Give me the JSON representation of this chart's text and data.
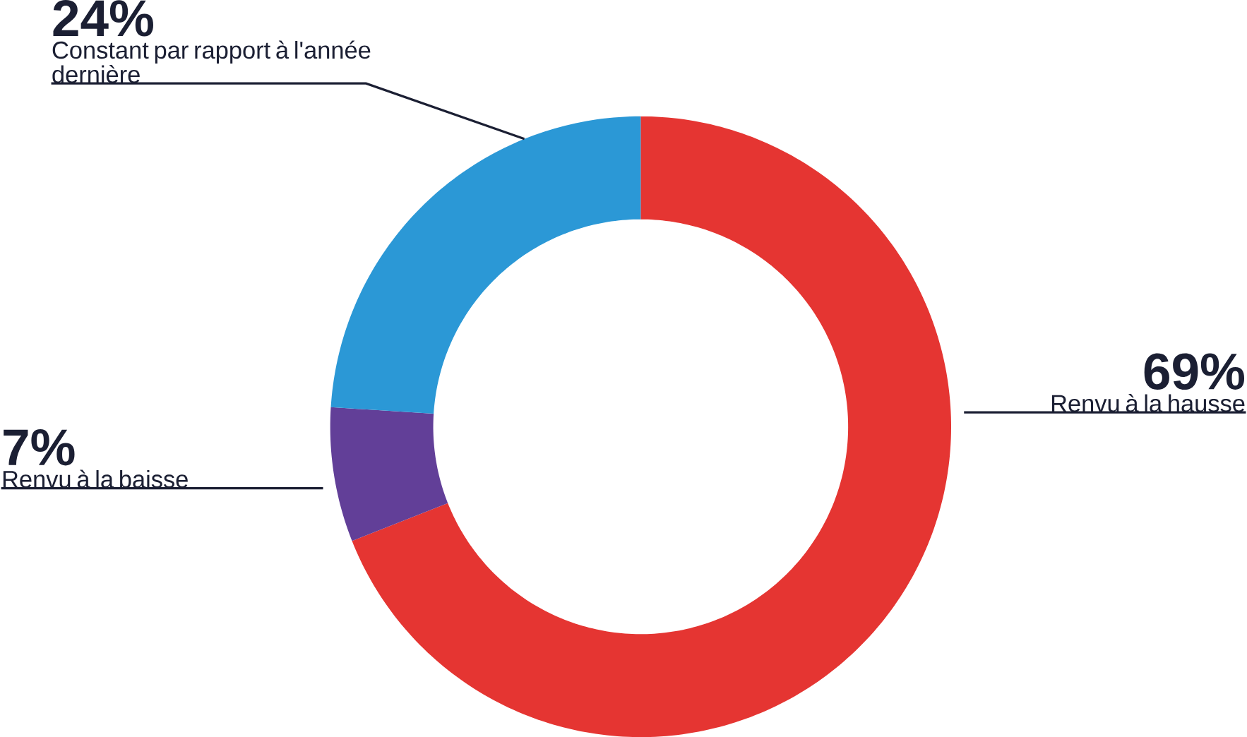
{
  "chart_data": {
    "type": "donut",
    "categories": [
      "Renvu à la hausse",
      "Renvu à la baisse",
      "Constant par rapport à l'année dernière"
    ],
    "values": [
      69,
      7,
      24
    ],
    "colors": [
      "#e53532",
      "#623f98",
      "#2b98d6"
    ],
    "value_labels": [
      "69%",
      "7%",
      "24%"
    ]
  }
}
